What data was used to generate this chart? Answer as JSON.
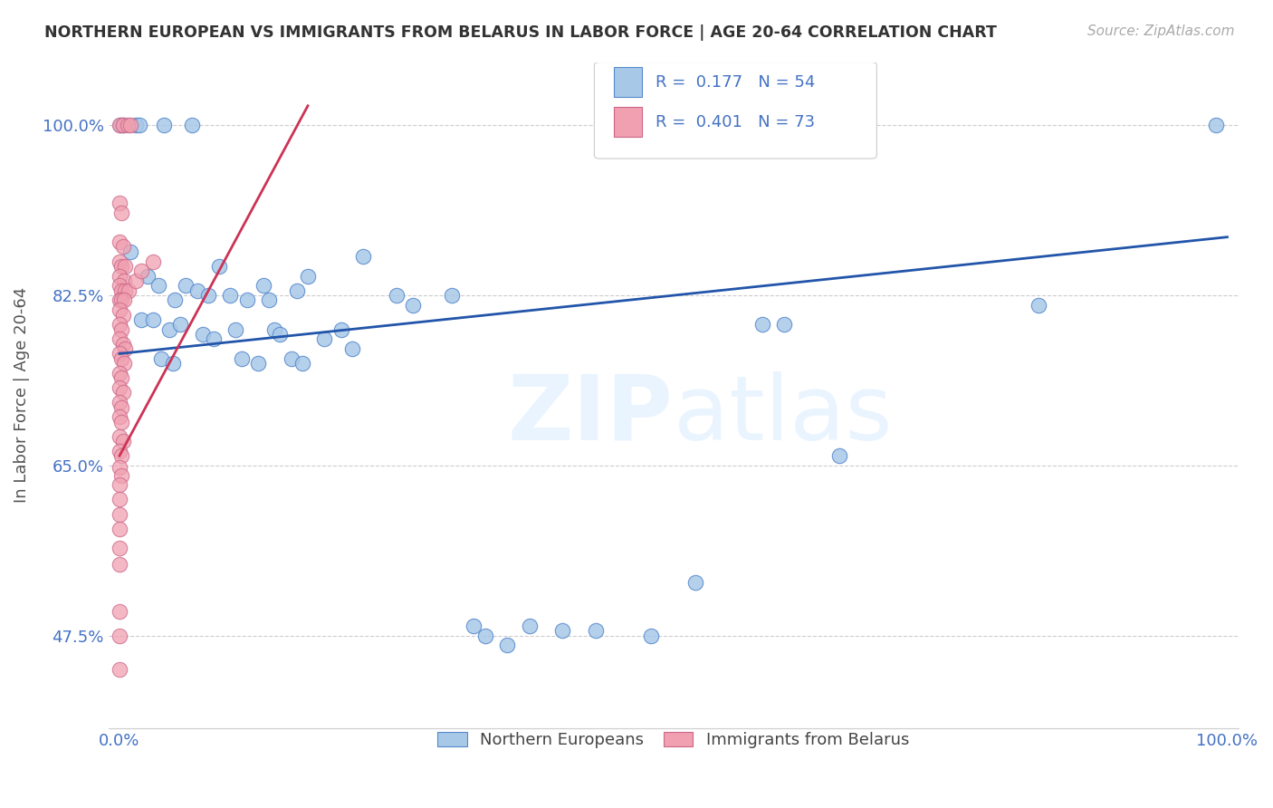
{
  "title": "NORTHERN EUROPEAN VS IMMIGRANTS FROM BELARUS IN LABOR FORCE | AGE 20-64 CORRELATION CHART",
  "source": "Source: ZipAtlas.com",
  "ylabel": "In Labor Force | Age 20-64",
  "yticks": [
    0.475,
    0.65,
    0.825,
    1.0
  ],
  "ytick_labels": [
    "47.5%",
    "65.0%",
    "82.5%",
    "100.0%"
  ],
  "blue_color": "#a8c8e8",
  "blue_edge_color": "#5588cc",
  "pink_color": "#f0a0b0",
  "pink_edge_color": "#cc6688",
  "blue_line_color": "#2255aa",
  "pink_line_color": "#cc3355",
  "title_color": "#333333",
  "axis_tick_color": "#4472c4",
  "watermark_color": "#ddeeff",
  "legend_R_N_color": "#4472c4",
  "blue_R": 0.177,
  "blue_N": 54,
  "pink_R": 0.401,
  "pink_N": 73,
  "blue_scatter": [
    [
      0.001,
      1.0
    ],
    [
      0.003,
      1.0
    ],
    [
      0.015,
      1.0
    ],
    [
      0.018,
      1.0
    ],
    [
      0.04,
      1.0
    ],
    [
      0.065,
      1.0
    ],
    [
      0.99,
      1.0
    ],
    [
      0.01,
      0.87
    ],
    [
      0.025,
      0.845
    ],
    [
      0.035,
      0.835
    ],
    [
      0.05,
      0.82
    ],
    [
      0.06,
      0.835
    ],
    [
      0.07,
      0.83
    ],
    [
      0.08,
      0.825
    ],
    [
      0.09,
      0.855
    ],
    [
      0.1,
      0.825
    ],
    [
      0.115,
      0.82
    ],
    [
      0.13,
      0.835
    ],
    [
      0.135,
      0.82
    ],
    [
      0.16,
      0.83
    ],
    [
      0.17,
      0.845
    ],
    [
      0.22,
      0.865
    ],
    [
      0.25,
      0.825
    ],
    [
      0.3,
      0.825
    ],
    [
      0.02,
      0.8
    ],
    [
      0.03,
      0.8
    ],
    [
      0.045,
      0.79
    ],
    [
      0.055,
      0.795
    ],
    [
      0.075,
      0.785
    ],
    [
      0.085,
      0.78
    ],
    [
      0.105,
      0.79
    ],
    [
      0.14,
      0.79
    ],
    [
      0.145,
      0.785
    ],
    [
      0.185,
      0.78
    ],
    [
      0.2,
      0.79
    ],
    [
      0.265,
      0.815
    ],
    [
      0.58,
      0.795
    ],
    [
      0.6,
      0.795
    ],
    [
      0.83,
      0.815
    ],
    [
      0.038,
      0.76
    ],
    [
      0.048,
      0.755
    ],
    [
      0.11,
      0.76
    ],
    [
      0.125,
      0.755
    ],
    [
      0.155,
      0.76
    ],
    [
      0.165,
      0.755
    ],
    [
      0.21,
      0.77
    ],
    [
      0.65,
      0.66
    ],
    [
      0.52,
      0.53
    ],
    [
      0.32,
      0.485
    ],
    [
      0.37,
      0.485
    ],
    [
      0.4,
      0.48
    ],
    [
      0.43,
      0.48
    ],
    [
      0.48,
      0.475
    ],
    [
      0.33,
      0.475
    ],
    [
      0.35,
      0.465
    ]
  ],
  "pink_scatter": [
    [
      0.0,
      1.0
    ],
    [
      0.003,
      1.0
    ],
    [
      0.007,
      1.0
    ],
    [
      0.01,
      1.0
    ],
    [
      0.0,
      0.92
    ],
    [
      0.002,
      0.91
    ],
    [
      0.0,
      0.88
    ],
    [
      0.003,
      0.875
    ],
    [
      0.0,
      0.86
    ],
    [
      0.002,
      0.855
    ],
    [
      0.005,
      0.855
    ],
    [
      0.0,
      0.845
    ],
    [
      0.004,
      0.84
    ],
    [
      0.0,
      0.835
    ],
    [
      0.002,
      0.83
    ],
    [
      0.005,
      0.83
    ],
    [
      0.008,
      0.83
    ],
    [
      0.0,
      0.82
    ],
    [
      0.002,
      0.82
    ],
    [
      0.004,
      0.82
    ],
    [
      0.0,
      0.81
    ],
    [
      0.003,
      0.805
    ],
    [
      0.0,
      0.795
    ],
    [
      0.002,
      0.79
    ],
    [
      0.0,
      0.78
    ],
    [
      0.003,
      0.775
    ],
    [
      0.005,
      0.77
    ],
    [
      0.0,
      0.765
    ],
    [
      0.002,
      0.76
    ],
    [
      0.004,
      0.755
    ],
    [
      0.0,
      0.745
    ],
    [
      0.002,
      0.74
    ],
    [
      0.0,
      0.73
    ],
    [
      0.003,
      0.725
    ],
    [
      0.0,
      0.715
    ],
    [
      0.002,
      0.71
    ],
    [
      0.0,
      0.7
    ],
    [
      0.002,
      0.695
    ],
    [
      0.0,
      0.68
    ],
    [
      0.003,
      0.675
    ],
    [
      0.0,
      0.665
    ],
    [
      0.002,
      0.66
    ],
    [
      0.0,
      0.648
    ],
    [
      0.002,
      0.64
    ],
    [
      0.0,
      0.63
    ],
    [
      0.0,
      0.615
    ],
    [
      0.0,
      0.6
    ],
    [
      0.0,
      0.585
    ],
    [
      0.0,
      0.565
    ],
    [
      0.0,
      0.548
    ],
    [
      0.015,
      0.84
    ],
    [
      0.02,
      0.85
    ],
    [
      0.03,
      0.86
    ],
    [
      0.0,
      0.5
    ],
    [
      0.0,
      0.475
    ],
    [
      0.0,
      0.44
    ]
  ],
  "blue_trend_x": [
    0.0,
    1.0
  ],
  "blue_trend_y": [
    0.765,
    0.885
  ],
  "pink_trend_x": [
    0.0,
    0.17
  ],
  "pink_trend_y": [
    0.66,
    1.02
  ],
  "xlim": [
    -0.01,
    1.01
  ],
  "ylim": [
    0.38,
    1.065
  ],
  "background_color": "#ffffff",
  "grid_color": "#cccccc"
}
